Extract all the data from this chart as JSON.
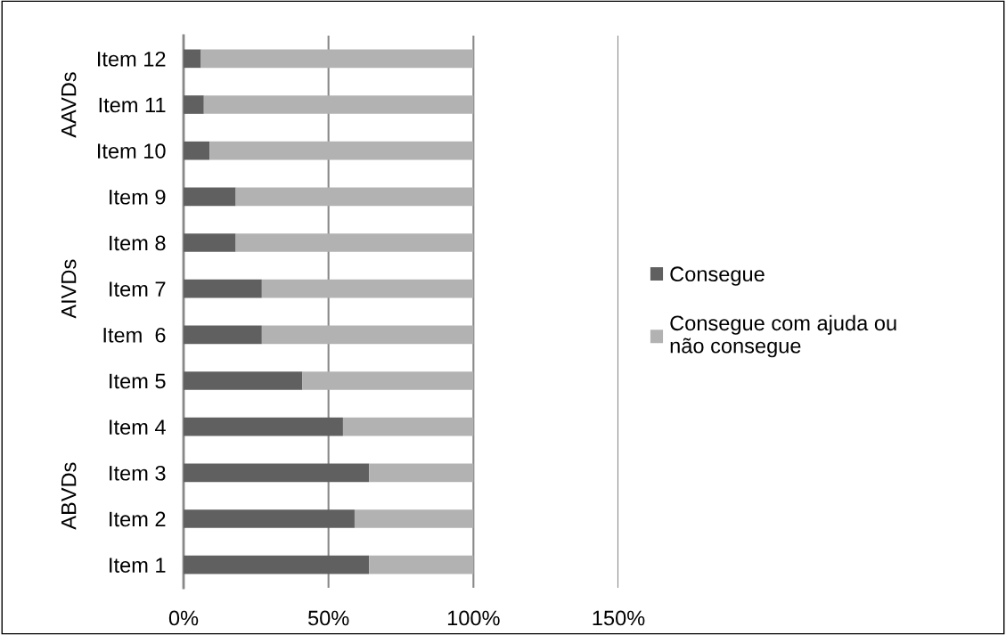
{
  "chart_data": {
    "type": "bar",
    "orientation": "horizontal",
    "stacked": true,
    "categories": [
      "Item 12",
      "Item 11",
      "Item 10",
      "Item 9",
      "Item 8",
      "Item 7",
      "Item  6",
      "Item 5",
      "Item 4",
      "Item 3",
      "Item 2",
      "Item 1"
    ],
    "series": [
      {
        "name": "Consegue",
        "color": "#606060",
        "values": [
          6,
          7,
          9,
          18,
          18,
          27,
          27,
          41,
          55,
          64,
          59,
          64
        ]
      },
      {
        "name": "Consegue com ajuda ou não consegue",
        "color": "#b2b2b2",
        "values": [
          94,
          93,
          91,
          82,
          82,
          73,
          73,
          59,
          45,
          36,
          41,
          36
        ]
      }
    ],
    "xlim": [
      0,
      150
    ],
    "xticks": [
      {
        "value": 0,
        "label": "0%"
      },
      {
        "value": 50,
        "label": "50%"
      },
      {
        "value": 100,
        "label": "100%"
      },
      {
        "value": 150,
        "label": "150%"
      }
    ],
    "grid": "x",
    "legend": "right",
    "annotations": [
      "AAVDs",
      "AIVDs",
      "ABVDs"
    ]
  }
}
